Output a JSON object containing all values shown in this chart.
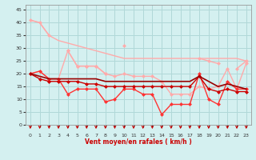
{
  "x": [
    0,
    1,
    2,
    3,
    4,
    5,
    6,
    7,
    8,
    9,
    10,
    11,
    12,
    13,
    14,
    15,
    16,
    17,
    18,
    19,
    20,
    21,
    22,
    23
  ],
  "series": [
    {
      "name": "pink_upper_max",
      "color": "#ffaaaa",
      "linewidth": 1.0,
      "markersize": 2.5,
      "values": [
        41,
        40,
        35,
        null,
        29,
        23,
        23,
        23,
        20,
        null,
        31,
        null,
        null,
        null,
        null,
        null,
        null,
        null,
        26,
        25,
        24,
        null,
        22,
        25
      ]
    },
    {
      "name": "pink_upper_trend1",
      "color": "#ffaaaa",
      "linewidth": 1.0,
      "markersize": 0,
      "values": [
        41,
        40,
        35,
        33,
        32,
        31,
        30,
        29,
        28,
        27,
        26,
        26,
        26,
        26,
        26,
        26,
        26,
        26,
        26,
        26,
        26,
        26,
        26,
        25
      ]
    },
    {
      "name": "pink_lower_trend",
      "color": "#ffaaaa",
      "linewidth": 1.0,
      "markersize": 2.5,
      "values": [
        20,
        21,
        18,
        18,
        29,
        23,
        23,
        23,
        20,
        19,
        20,
        19,
        19,
        19,
        17,
        12,
        12,
        12,
        15,
        14,
        15,
        22,
        14,
        24
      ]
    },
    {
      "name": "red_series1",
      "color": "#ff3333",
      "linewidth": 1.0,
      "markersize": 2.5,
      "values": [
        20,
        21,
        18,
        18,
        12,
        14,
        14,
        14,
        9,
        10,
        14,
        14,
        12,
        12,
        4,
        8,
        8,
        8,
        20,
        10,
        8,
        17,
        14,
        14
      ]
    },
    {
      "name": "red_series2",
      "color": "#cc0000",
      "linewidth": 1.0,
      "markersize": 2.5,
      "values": [
        20,
        18,
        17,
        17,
        17,
        17,
        16,
        16,
        15,
        15,
        15,
        15,
        15,
        15,
        15,
        15,
        15,
        15,
        19,
        14,
        13,
        14,
        13,
        13
      ]
    },
    {
      "name": "dark_red_flat",
      "color": "#990000",
      "linewidth": 1.2,
      "markersize": 0,
      "values": [
        20,
        19,
        18,
        18,
        18,
        18,
        18,
        18,
        17,
        17,
        17,
        17,
        17,
        17,
        17,
        17,
        17,
        17,
        19,
        17,
        15,
        16,
        15,
        14
      ]
    }
  ],
  "xlabel": "Vent moyen/en rafales ( km/h )",
  "xlim": [
    -0.5,
    23.5
  ],
  "ylim": [
    0,
    47
  ],
  "yticks": [
    0,
    5,
    10,
    15,
    20,
    25,
    30,
    35,
    40,
    45
  ],
  "xticks": [
    0,
    1,
    2,
    3,
    4,
    5,
    6,
    7,
    8,
    9,
    10,
    11,
    12,
    13,
    14,
    15,
    16,
    17,
    18,
    19,
    20,
    21,
    22,
    23
  ],
  "bg_color": "#d4f0f0",
  "grid_color": "#b0d8d8",
  "label_color": "#cc0000",
  "arrow_color": "#cc0000"
}
